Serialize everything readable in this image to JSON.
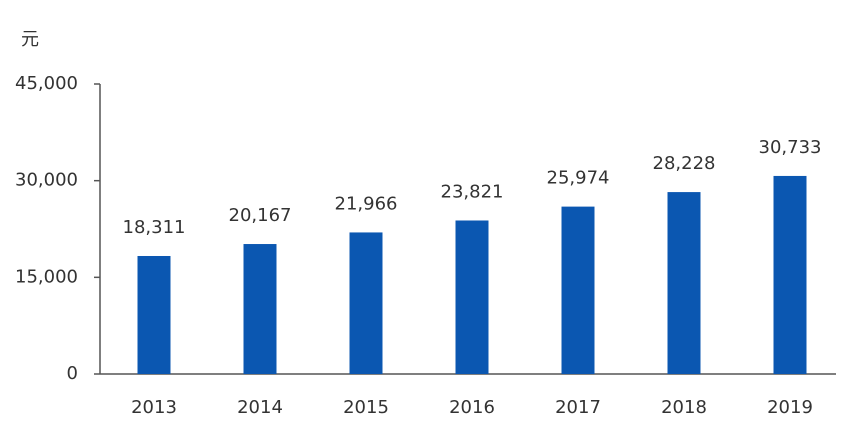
{
  "chart_data": {
    "type": "bar",
    "y_label": "元",
    "categories": [
      "2013",
      "2014",
      "2015",
      "2016",
      "2017",
      "2018",
      "2019"
    ],
    "values": [
      18311,
      20167,
      21966,
      23821,
      25974,
      28228,
      30733
    ],
    "value_labels": [
      "18,311",
      "20,167",
      "21,966",
      "23,821",
      "25,974",
      "28,228",
      "30,733"
    ],
    "color": "#0b57b1",
    "ylim": [
      0,
      45000
    ],
    "yticks": [
      0,
      {
        "value": 15000,
        "label": "15,000"
      },
      {
        "value": 30000,
        "label": "30,000"
      },
      {
        "value": 45000,
        "label": "45,000"
      }
    ],
    "grid": false
  }
}
